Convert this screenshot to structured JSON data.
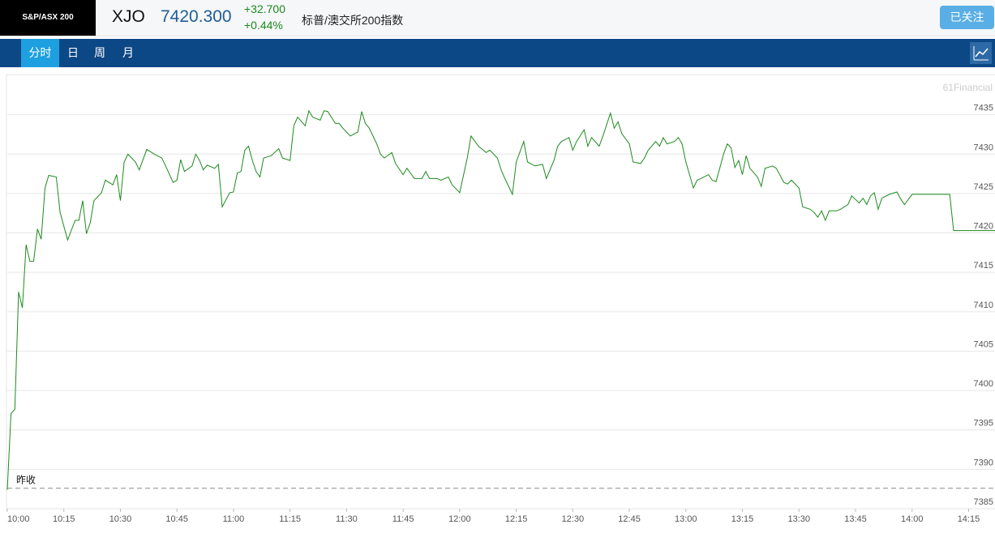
{
  "header": {
    "logo": "S&P/ASX 200",
    "symbol": "XJO",
    "price": "7420.300",
    "change": "+32.700",
    "change_pct": "+0.44%",
    "name": "标普/澳交所200指数",
    "follow_button": "已关注"
  },
  "tabs": [
    "分时",
    "日",
    "周",
    "月"
  ],
  "chart_data": {
    "type": "line",
    "watermark": "61Financial",
    "color": "#1e8a1e",
    "x": [
      "10:00",
      "10:01",
      "10:02",
      "10:03",
      "10:04",
      "10:05",
      "10:06",
      "10:07",
      "10:08",
      "10:09",
      "10:10",
      "10:11",
      "10:13",
      "10:14",
      "10:16",
      "10:18",
      "10:19",
      "10:20",
      "10:21",
      "10:22",
      "10:23",
      "10:25",
      "10:26",
      "10:28",
      "10:29",
      "10:30",
      "10:31",
      "10:32",
      "10:34",
      "10:35",
      "10:37",
      "10:39",
      "10:41",
      "10:42",
      "10:44",
      "10:45",
      "10:46",
      "10:47",
      "10:49",
      "10:50",
      "10:51",
      "10:52",
      "10:53",
      "10:55",
      "10:56",
      "10:57",
      "10:59",
      "11:00",
      "11:01",
      "11:02",
      "11:03",
      "11:04",
      "11:05",
      "11:06",
      "11:07",
      "11:08",
      "11:10",
      "11:12",
      "11:13",
      "11:15",
      "11:16",
      "11:17",
      "11:19",
      "11:20",
      "11:21",
      "11:23",
      "11:24",
      "11:25",
      "11:27",
      "11:28",
      "11:29",
      "11:31",
      "11:33",
      "11:34",
      "11:35",
      "11:36",
      "11:38",
      "11:39",
      "11:40",
      "11:42",
      "11:43",
      "11:45",
      "11:46",
      "11:48",
      "11:50",
      "11:51",
      "11:52",
      "11:54",
      "11:55",
      "11:57",
      "11:58",
      "12:00",
      "12:02",
      "12:03",
      "12:05",
      "12:07",
      "12:08",
      "12:10",
      "12:11",
      "12:12",
      "12:14",
      "12:15",
      "12:17",
      "12:18",
      "12:20",
      "12:22",
      "12:23",
      "12:25",
      "12:26",
      "12:27",
      "12:29",
      "12:30",
      "12:31",
      "12:33",
      "12:34",
      "12:35",
      "12:37",
      "12:38",
      "12:40",
      "12:41",
      "12:42",
      "12:43",
      "12:45",
      "12:46",
      "12:48",
      "12:49",
      "12:50",
      "12:52",
      "12:53",
      "12:54",
      "12:55",
      "12:57",
      "12:58",
      "12:59",
      "13:00",
      "13:02",
      "13:03",
      "13:04",
      "13:06",
      "13:07",
      "13:08",
      "13:10",
      "13:11",
      "13:12",
      "13:13",
      "13:14",
      "13:15",
      "13:16",
      "13:17",
      "13:19",
      "13:20",
      "13:21",
      "13:23",
      "13:24",
      "13:26",
      "13:27",
      "13:28",
      "13:30",
      "13:31",
      "13:33",
      "13:34",
      "13:35",
      "13:36",
      "13:37",
      "13:38",
      "13:40",
      "13:41",
      "13:43",
      "13:44",
      "13:46",
      "13:47",
      "13:48",
      "13:49",
      "13:50",
      "13:51",
      "13:52",
      "13:54",
      "13:56",
      "13:57",
      "13:58",
      "14:00",
      "14:10",
      "14:11",
      "14:22"
    ],
    "values": [
      7387.4,
      7397.1,
      7397.6,
      7412.5,
      7410.5,
      7418.5,
      7416.4,
      7416.4,
      7420.5,
      7419.2,
      7425.7,
      7427.3,
      7427.1,
      7422.6,
      7419.1,
      7421.6,
      7421.6,
      7424.1,
      7419.9,
      7421.3,
      7424.1,
      7425.1,
      7426.7,
      7426.1,
      7427.4,
      7424.1,
      7429.0,
      7430.0,
      7429.0,
      7428.0,
      7430.6,
      7430.0,
      7429.5,
      7428.5,
      7426.4,
      7426.7,
      7429.3,
      7427.8,
      7428.5,
      7430.0,
      7429.2,
      7428.0,
      7428.6,
      7428.2,
      7428.7,
      7423.3,
      7425.1,
      7425.2,
      7427.6,
      7427.8,
      7430.5,
      7431.0,
      7429.2,
      7427.8,
      7427.1,
      7429.5,
      7429.8,
      7430.7,
      7429.5,
      7429.2,
      7433.6,
      7434.7,
      7433.6,
      7435.5,
      7434.7,
      7434.3,
      7435.5,
      7435.4,
      7433.9,
      7433.9,
      7433.3,
      7432.3,
      7432.8,
      7435.4,
      7433.9,
      7433.3,
      7431.3,
      7430.0,
      7429.5,
      7430.2,
      7428.8,
      7427.4,
      7428.2,
      7426.9,
      7426.9,
      7427.8,
      7426.9,
      7426.9,
      7426.7,
      7427.1,
      7426.1,
      7425.1,
      7429.5,
      7432.3,
      7431.0,
      7430.2,
      7430.5,
      7429.5,
      7428.0,
      7426.9,
      7424.9,
      7429.0,
      7431.6,
      7429.0,
      7428.5,
      7428.7,
      7426.9,
      7429.2,
      7431.0,
      7431.6,
      7432.1,
      7430.5,
      7431.6,
      7433.1,
      7431.0,
      7432.1,
      7431.0,
      7432.3,
      7435.2,
      7433.3,
      7434.1,
      7432.6,
      7431.3,
      7429.0,
      7428.8,
      7429.5,
      7430.5,
      7431.6,
      7431.0,
      7432.1,
      7431.3,
      7431.6,
      7432.1,
      7431.3,
      7429.0,
      7425.7,
      7426.7,
      7426.9,
      7427.4,
      7426.7,
      7426.5,
      7430.0,
      7431.3,
      7430.8,
      7428.3,
      7429.2,
      7427.4,
      7429.8,
      7428.2,
      7427.1,
      7425.9,
      7428.2,
      7428.5,
      7428.2,
      7426.4,
      7426.2,
      7426.7,
      7425.7,
      7423.3,
      7423.0,
      7422.6,
      7422.0,
      7422.8,
      7421.6,
      7422.8,
      7422.8,
      7423.0,
      7423.6,
      7424.7,
      7423.8,
      7424.4,
      7423.6,
      7424.7,
      7425.1,
      7423.0,
      7424.4,
      7424.9,
      7425.2,
      7424.3,
      7423.6,
      7424.9,
      7424.9,
      7420.3,
      7420.3
    ],
    "xlim": [
      "10:00",
      "14:22"
    ],
    "xticks": [
      "10:00",
      "10:15",
      "10:30",
      "10:45",
      "11:00",
      "11:15",
      "11:30",
      "11:45",
      "12:00",
      "12:15",
      "12:30",
      "12:45",
      "13:00",
      "13:15",
      "13:30",
      "13:45",
      "14:00",
      "14:15"
    ],
    "ylim": [
      7385,
      7440
    ],
    "yticks": [
      7385,
      7390,
      7395,
      7400,
      7405,
      7410,
      7415,
      7420,
      7425,
      7430,
      7435
    ],
    "grid": true,
    "prev_close": {
      "label": "昨收",
      "value": 7387.6
    }
  }
}
